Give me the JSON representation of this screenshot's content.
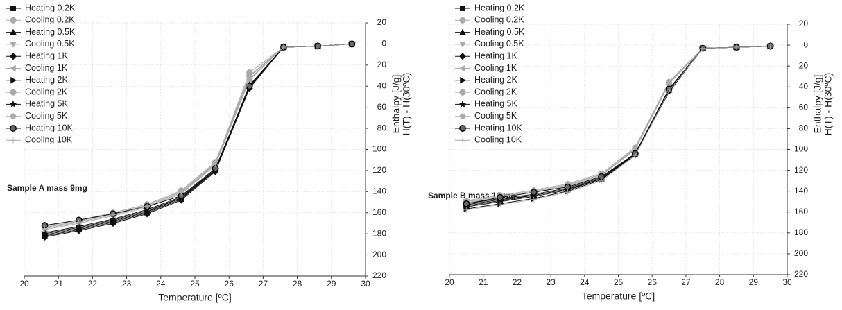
{
  "chart_data": [
    {
      "type": "line",
      "annotation": "Sample A mass 9mg",
      "xlabel": "Temperature [ºC]",
      "ylabel": [
        "Enthalpy [J/g]",
        "H(T) - H(30ºC)"
      ],
      "xlim": [
        20,
        30
      ],
      "xticks": [
        20,
        21,
        22,
        23,
        24,
        25,
        26,
        27,
        28,
        29,
        30
      ],
      "ylim": [
        -220,
        20
      ],
      "yticks": [
        20,
        0,
        {
          "value": -20,
          "label": "20"
        },
        {
          "value": -40,
          "label": "40"
        },
        {
          "value": -60,
          "label": "60"
        },
        {
          "value": -80,
          "label": "80"
        },
        {
          "value": -100,
          "label": "100"
        },
        {
          "value": -120,
          "label": "120"
        },
        {
          "value": -140,
          "label": "140"
        },
        {
          "value": -160,
          "label": "160"
        },
        {
          "value": -180,
          "label": "180"
        },
        {
          "value": -200,
          "label": "200"
        },
        {
          "value": -220,
          "label": "220"
        }
      ],
      "grid": true,
      "x": [
        20.6,
        21.6,
        22.6,
        23.6,
        24.6,
        25.6,
        26.6,
        27.6,
        28.6,
        29.6
      ],
      "series": [
        {
          "name": "Heating 0.2K",
          "color": "#111111",
          "marker": "square",
          "values": [
            -182,
            -176,
            -169,
            -160,
            -147,
            -120,
            -41,
            -3,
            -2,
            0
          ]
        },
        {
          "name": "Cooling 0.2K",
          "color": "#aaaaaa",
          "marker": "circle",
          "values": [
            -174,
            -168,
            -161,
            -153,
            -140,
            -113,
            -27,
            -3,
            -2,
            0
          ]
        },
        {
          "name": "Heating 0.5K",
          "color": "#111111",
          "marker": "triangle-up",
          "values": [
            -180,
            -174,
            -167,
            -158,
            -146,
            -119,
            -40,
            -3,
            -2,
            0
          ]
        },
        {
          "name": "Cooling 0.5K",
          "color": "#aaaaaa",
          "marker": "triangle-down",
          "values": [
            -175,
            -169,
            -162,
            -154,
            -141,
            -114,
            -33,
            -3,
            -2,
            0
          ]
        },
        {
          "name": "Heating 1K",
          "color": "#111111",
          "marker": "diamond",
          "values": [
            -183,
            -177,
            -170,
            -161,
            -148,
            -121,
            -42,
            -3,
            -2,
            0
          ]
        },
        {
          "name": "Cooling 1K",
          "color": "#aaaaaa",
          "marker": "triangle-left",
          "values": [
            -176,
            -170,
            -163,
            -155,
            -142,
            -115,
            -34,
            -3,
            -2,
            0
          ]
        },
        {
          "name": "Heating 2K",
          "color": "#111111",
          "marker": "triangle-right",
          "values": [
            -181,
            -175,
            -168,
            -159,
            -146,
            -120,
            -41,
            -3,
            -2,
            0
          ]
        },
        {
          "name": "Cooling 2K",
          "color": "#aaaaaa",
          "marker": "circle",
          "values": [
            -173,
            -167,
            -160,
            -152,
            -139,
            -112,
            -30,
            -3,
            -2,
            0
          ]
        },
        {
          "name": "Heating 5K",
          "color": "#111111",
          "marker": "star",
          "values": [
            -179,
            -173,
            -166,
            -157,
            -145,
            -119,
            -39,
            -3,
            -2,
            0
          ]
        },
        {
          "name": "Cooling 5K",
          "color": "#aaaaaa",
          "marker": "pentagon",
          "values": [
            -174,
            -168,
            -161,
            -153,
            -140,
            -113,
            -31,
            -3,
            -2,
            0
          ]
        },
        {
          "name": "Heating 10K",
          "color": "#111111",
          "marker": "half-circle",
          "values": [
            -172,
            -167,
            -161,
            -154,
            -144,
            -118,
            -40,
            -3,
            -2,
            0
          ]
        },
        {
          "name": "Cooling 10K",
          "color": "#aaaaaa",
          "marker": "plus",
          "values": [
            -175,
            -169,
            -162,
            -154,
            -141,
            -114,
            -33,
            -3,
            -2,
            0
          ]
        }
      ]
    },
    {
      "type": "line",
      "annotation": "Sample B mass 16 mg",
      "xlabel": "Temperature [ºC]",
      "ylabel": [
        "Enthalpy [J/g]",
        "H(T) - H(30ºC)"
      ],
      "xlim": [
        20,
        30
      ],
      "xticks": [
        20,
        21,
        22,
        23,
        24,
        25,
        26,
        27,
        28,
        29,
        30
      ],
      "ylim": [
        -220,
        20
      ],
      "yticks": [
        20,
        0,
        {
          "value": -20,
          "label": "20"
        },
        {
          "value": -40,
          "label": "40"
        },
        {
          "value": -60,
          "label": "60"
        },
        {
          "value": -80,
          "label": "80"
        },
        {
          "value": -100,
          "label": "100"
        },
        {
          "value": -120,
          "label": "120"
        },
        {
          "value": -140,
          "label": "140"
        },
        {
          "value": -160,
          "label": "160"
        },
        {
          "value": -180,
          "label": "180"
        },
        {
          "value": -200,
          "label": "200"
        },
        {
          "value": -220,
          "label": "220"
        }
      ],
      "grid": true,
      "x": [
        20.5,
        21.5,
        22.5,
        23.5,
        24.5,
        25.5,
        26.5,
        27.5,
        28.5,
        29.5
      ],
      "series": [
        {
          "name": "Heating 0.2K",
          "color": "#111111",
          "marker": "square",
          "values": [
            -152,
            -147,
            -143,
            -137,
            -127,
            -104,
            -42,
            -3,
            -2,
            -1
          ]
        },
        {
          "name": "Cooling 0.2K",
          "color": "#aaaaaa",
          "marker": "circle",
          "values": [
            -151,
            -146,
            -141,
            -135,
            -125,
            -100,
            -37,
            -3,
            -2,
            -1
          ]
        },
        {
          "name": "Heating 0.5K",
          "color": "#111111",
          "marker": "triangle-up",
          "values": [
            -154,
            -149,
            -144,
            -138,
            -128,
            -104,
            -43,
            -3,
            -2,
            -1
          ]
        },
        {
          "name": "Cooling 0.5K",
          "color": "#aaaaaa",
          "marker": "triangle-down",
          "values": [
            -150,
            -145,
            -140,
            -134,
            -124,
            -99,
            -36,
            -3,
            -2,
            -1
          ]
        },
        {
          "name": "Heating 1K",
          "color": "#111111",
          "marker": "diamond",
          "values": [
            -153,
            -148,
            -144,
            -138,
            -128,
            -105,
            -44,
            -3,
            -2,
            -1
          ]
        },
        {
          "name": "Cooling 1K",
          "color": "#aaaaaa",
          "marker": "triangle-left",
          "values": [
            -151,
            -146,
            -141,
            -135,
            -125,
            -100,
            -37,
            -3,
            -2,
            -1
          ]
        },
        {
          "name": "Heating 2K",
          "color": "#111111",
          "marker": "triangle-right",
          "values": [
            -157,
            -152,
            -147,
            -140,
            -129,
            -105,
            -45,
            -3,
            -2,
            -1
          ]
        },
        {
          "name": "Cooling 2K",
          "color": "#aaaaaa",
          "marker": "circle",
          "values": [
            -150,
            -145,
            -140,
            -134,
            -124,
            -99,
            -36,
            -3,
            -2,
            -1
          ]
        },
        {
          "name": "Heating 5K",
          "color": "#111111",
          "marker": "star",
          "values": [
            -155,
            -150,
            -145,
            -139,
            -128,
            -104,
            -43,
            -3,
            -2,
            -1
          ]
        },
        {
          "name": "Cooling 5K",
          "color": "#aaaaaa",
          "marker": "pentagon",
          "values": [
            -149,
            -144,
            -139,
            -133,
            -123,
            -98,
            -35,
            -3,
            -2,
            -1
          ]
        },
        {
          "name": "Heating 10K",
          "color": "#111111",
          "marker": "half-circle",
          "values": [
            -152,
            -146,
            -141,
            -136,
            -126,
            -104,
            -42,
            -3,
            -2,
            -1
          ]
        },
        {
          "name": "Cooling 10K",
          "color": "#aaaaaa",
          "marker": "plus",
          "values": [
            -158,
            -153,
            -148,
            -141,
            -130,
            -106,
            -44,
            -3,
            -2,
            -1
          ]
        }
      ]
    }
  ]
}
